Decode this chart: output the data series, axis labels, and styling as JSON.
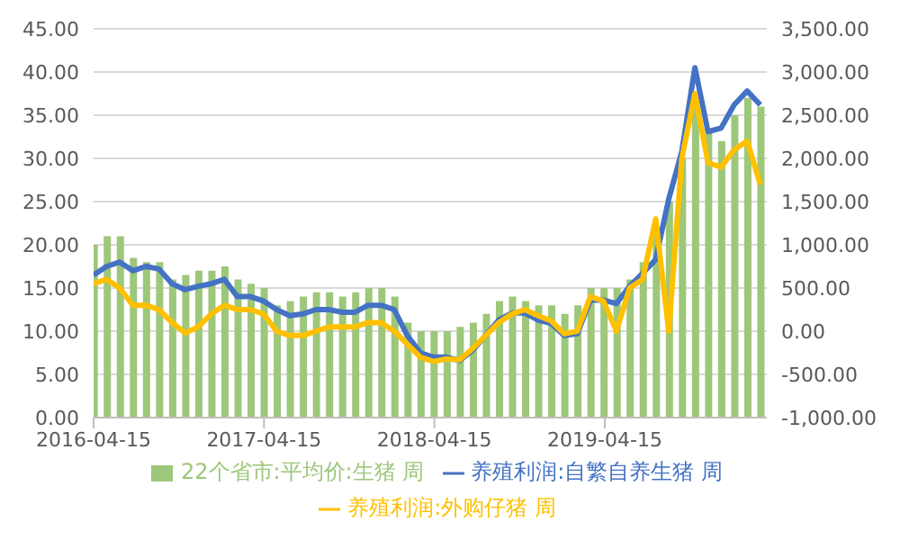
{
  "chart_data": {
    "type": "bar",
    "x": [
      "2016-04-15",
      "2016-05-13",
      "2016-06-10",
      "2016-07-08",
      "2016-08-05",
      "2016-09-02",
      "2016-09-30",
      "2016-10-28",
      "2016-11-25",
      "2016-12-23",
      "2017-01-20",
      "2017-02-17",
      "2017-03-17",
      "2017-04-14",
      "2017-05-12",
      "2017-06-09",
      "2017-07-07",
      "2017-08-04",
      "2017-09-01",
      "2017-09-29",
      "2017-10-27",
      "2017-11-24",
      "2017-12-22",
      "2018-01-19",
      "2018-02-16",
      "2018-03-16",
      "2018-04-13",
      "2018-05-11",
      "2018-06-08",
      "2018-07-06",
      "2018-08-03",
      "2018-08-31",
      "2018-09-28",
      "2018-10-26",
      "2018-11-23",
      "2018-12-21",
      "2019-01-18",
      "2019-02-15",
      "2019-03-15",
      "2019-04-12",
      "2019-05-10",
      "2019-06-07",
      "2019-07-05",
      "2019-08-02",
      "2019-08-30",
      "2019-09-27",
      "2019-10-25",
      "2019-11-22",
      "2019-12-20",
      "2020-01-17",
      "2020-02-14",
      "2020-03-13"
    ],
    "series": [
      {
        "name": "22个省市:平均价:生猪 周",
        "color": "#9dc77a",
        "values": [
          20,
          21,
          21,
          18.5,
          18,
          18,
          16,
          16.5,
          17,
          17,
          17.5,
          16,
          15.5,
          15,
          13,
          13.5,
          14,
          14.5,
          14.5,
          14,
          14.5,
          15,
          15,
          14,
          11,
          10,
          10,
          10,
          10.5,
          11,
          12,
          13.5,
          14,
          13.5,
          13,
          13,
          12,
          13,
          15,
          15,
          15,
          16,
          18,
          22,
          25,
          30,
          36,
          33,
          32,
          35,
          37,
          36
        ]
      },
      {
        "name": "养殖利润:自繁自养生猪 周",
        "type": "line",
        "axis": "y2",
        "color": "#4472c4",
        "values": [
          650,
          750,
          800,
          700,
          750,
          720,
          550,
          480,
          520,
          550,
          600,
          400,
          400,
          350,
          250,
          180,
          200,
          250,
          250,
          220,
          220,
          300,
          300,
          250,
          -50,
          -250,
          -300,
          -300,
          -340,
          -220,
          -50,
          130,
          210,
          210,
          130,
          90,
          -50,
          -30,
          360,
          360,
          320,
          520,
          670,
          830,
          1530,
          2080,
          3050,
          2310,
          2350,
          2620,
          2780,
          2620
        ]
      },
      {
        "name": "养殖利润:外购仔猪 周",
        "type": "line",
        "axis": "y2",
        "color": "#ffc000",
        "values": [
          550,
          600,
          500,
          300,
          300,
          250,
          100,
          -20,
          50,
          200,
          300,
          250,
          250,
          200,
          0,
          -50,
          -50,
          0,
          50,
          50,
          50,
          100,
          100,
          0,
          -150,
          -300,
          -350,
          -320,
          -330,
          -200,
          -50,
          100,
          200,
          250,
          180,
          120,
          -30,
          0,
          400,
          350,
          0,
          500,
          600,
          1300,
          0,
          2000,
          2750,
          1950,
          1900,
          2100,
          2200,
          1700
        ]
      }
    ],
    "xlim": [
      "2016-04-15",
      "2020-03-27"
    ],
    "xticks": [
      "2016-04-15",
      "2017-04-15",
      "2018-04-15",
      "2019-04-15"
    ],
    "ylim": [
      0,
      45
    ],
    "yticks": [
      {
        "value": 0,
        "label": "0.00"
      },
      {
        "value": 5,
        "label": "5.00"
      },
      {
        "value": 10,
        "label": "10.00"
      },
      {
        "value": 15,
        "label": "15.00"
      },
      {
        "value": 20,
        "label": "20.00"
      },
      {
        "value": 25,
        "label": "25.00"
      },
      {
        "value": 30,
        "label": "30.00"
      },
      {
        "value": 35,
        "label": "35.00"
      },
      {
        "value": 40,
        "label": "40.00"
      },
      {
        "value": 45,
        "label": "45.00"
      }
    ],
    "y2lim": [
      -1000,
      3500
    ],
    "y2ticks": [
      {
        "value": -1000,
        "label": "-1,000.00"
      },
      {
        "value": -500,
        "label": "-500.00"
      },
      {
        "value": 0,
        "label": "0.00"
      },
      {
        "value": 500,
        "label": "500.00"
      },
      {
        "value": 1000,
        "label": "1,000.00"
      },
      {
        "value": 1500,
        "label": "1,500.00"
      },
      {
        "value": 2000,
        "label": "2,000.00"
      },
      {
        "value": 2500,
        "label": "2,500.00"
      },
      {
        "value": 3000,
        "label": "3,000.00"
      },
      {
        "value": 3500,
        "label": "3,500.00"
      }
    ],
    "grid": "y",
    "legend": "bottom"
  }
}
